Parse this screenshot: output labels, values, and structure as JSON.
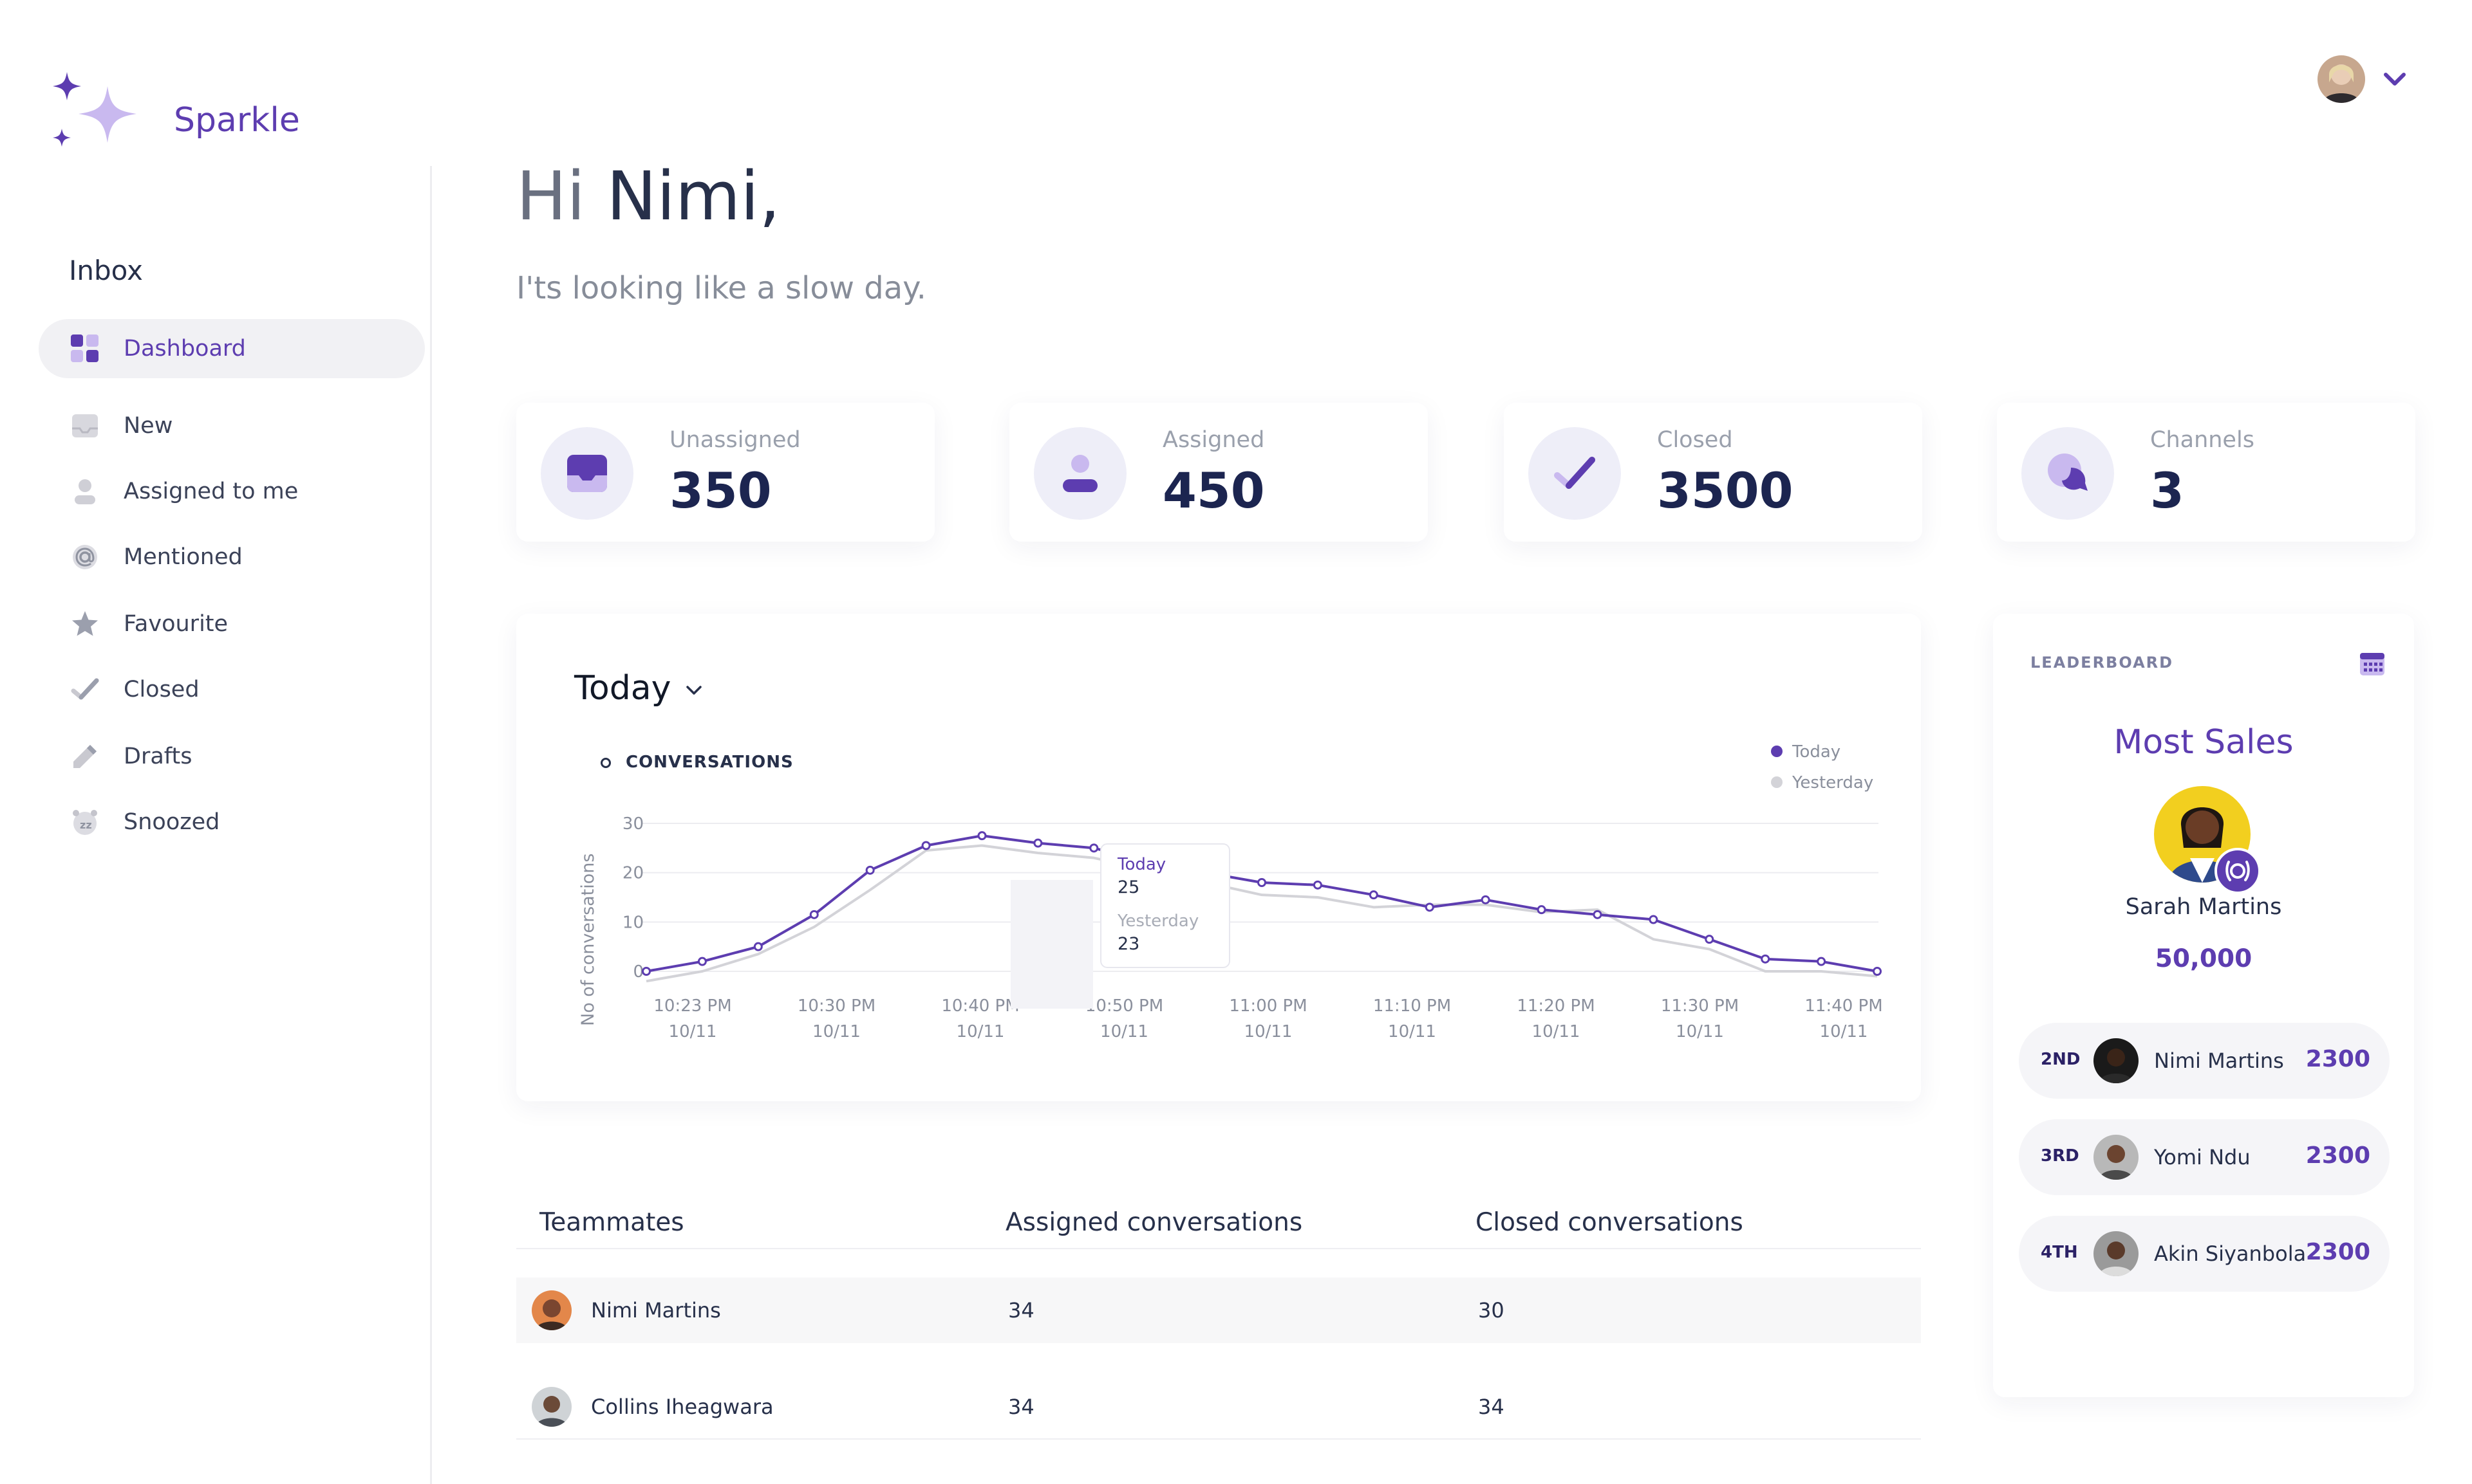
{
  "app": {
    "name": "Sparkle"
  },
  "colors": {
    "accent": "#5d3db0",
    "accent_light": "#c9b9ef",
    "navy": "#1c2550",
    "muted": "#9aa0ac"
  },
  "sidebar": {
    "title": "Inbox",
    "items": [
      {
        "label": "Dashboard",
        "icon": "dashboard-icon",
        "active": true
      },
      {
        "label": "New",
        "icon": "inbox-tray-icon"
      },
      {
        "label": "Assigned to me",
        "icon": "user-icon"
      },
      {
        "label": "Mentioned",
        "icon": "at-icon"
      },
      {
        "label": "Favourite",
        "icon": "star-icon"
      },
      {
        "label": "Closed",
        "icon": "check-icon"
      },
      {
        "label": "Drafts",
        "icon": "pencil-icon"
      },
      {
        "label": "Snoozed",
        "icon": "snooze-icon"
      }
    ]
  },
  "header": {
    "greeting_hi": "Hi",
    "greeting_name": "Nimi,",
    "subtitle": "I'ts looking like a slow day."
  },
  "stats": [
    {
      "label": "Unassigned",
      "value": "350",
      "icon": "inbox-tray-icon"
    },
    {
      "label": "Assigned",
      "value": "450",
      "icon": "user-icon"
    },
    {
      "label": "Closed",
      "value": "3500",
      "icon": "check-icon"
    },
    {
      "label": "Channels",
      "value": "3",
      "icon": "chat-bubbles-icon"
    }
  ],
  "chart_panel": {
    "period": "Today",
    "metric_label": "CONVERSATIONS",
    "tooltip": {
      "today_label": "Today",
      "today_value": "25",
      "yesterday_label": "Yesterday",
      "yesterday_value": "23"
    }
  },
  "chart_data": {
    "type": "line",
    "ylabel": "No of conversations",
    "ylim": [
      0,
      30
    ],
    "yticks": [
      "0",
      "10",
      "20",
      "30"
    ],
    "xticks": [
      {
        "time": "10:23 PM",
        "date": "10/11"
      },
      {
        "time": "10:30 PM",
        "date": "10/11"
      },
      {
        "time": "10:40 PM",
        "date": "10/11"
      },
      {
        "time": "10:50 PM",
        "date": "10/11"
      },
      {
        "time": "11:00 PM",
        "date": "10/11"
      },
      {
        "time": "11:10 PM",
        "date": "10/11"
      },
      {
        "time": "11:20 PM",
        "date": "10/11"
      },
      {
        "time": "11:30 PM",
        "date": "10/11"
      },
      {
        "time": "11:40 PM",
        "date": "10/11"
      }
    ],
    "grid": true,
    "legend_position": "top-right",
    "series": [
      {
        "name": "Today",
        "color": "#5d3db0",
        "values": [
          0,
          2,
          5,
          11.5,
          20.5,
          25.5,
          27.5,
          26,
          25,
          22,
          20,
          18,
          17.5,
          15.5,
          13,
          14.5,
          12.5,
          11.5,
          10.5,
          6.5,
          2.5,
          2,
          0
        ]
      },
      {
        "name": "Yesterday",
        "color": "#d3d3d8",
        "values": [
          -2,
          0,
          3.5,
          9,
          16.5,
          24.5,
          25.5,
          24,
          23,
          20.5,
          18,
          15.5,
          15,
          13,
          13.5,
          13.5,
          12,
          12.5,
          6.5,
          4.5,
          0,
          0,
          -1
        ]
      }
    ]
  },
  "table": {
    "headers": [
      "Teammates",
      "Assigned conversations",
      "Closed conversations"
    ],
    "rows": [
      {
        "name": "Nimi Martins",
        "assigned": "34",
        "closed": "30"
      },
      {
        "name": "Collins Iheagwara",
        "assigned": "34",
        "closed": "34"
      }
    ]
  },
  "leaderboard": {
    "title": "LEADERBOARD",
    "heading": "Most Sales",
    "winner": {
      "name": "Sarah Martins",
      "value": "50,000"
    },
    "entries": [
      {
        "rank": "2ND",
        "name": "Nimi Martins",
        "value": "2300"
      },
      {
        "rank": "3RD",
        "name": "Yomi Ndu",
        "value": "2300"
      },
      {
        "rank": "4TH",
        "name": "Akin Siyanbola",
        "value": "2300"
      }
    ]
  }
}
